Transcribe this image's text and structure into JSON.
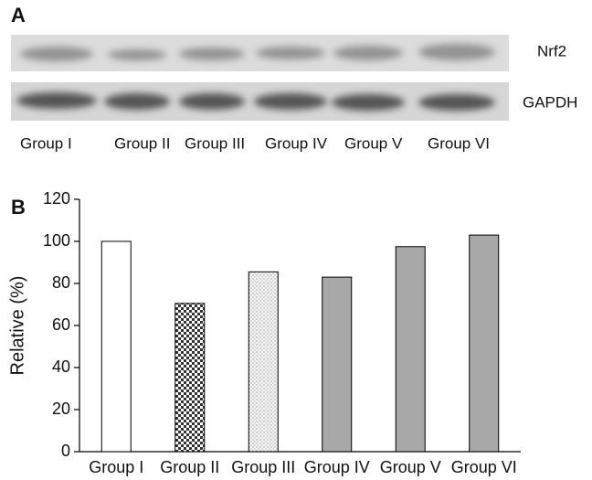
{
  "blot": {
    "panel_label": "A",
    "rows": [
      "Nrf2",
      "GAPDH"
    ],
    "lanes": [
      "Group I",
      "Group II",
      "Group III",
      "Group IV",
      "Group V",
      "Group VI"
    ]
  },
  "chart_data": {
    "type": "bar",
    "panel_label": "B",
    "y_label": "Relative (%)",
    "categories": [
      "Group I",
      "Group II",
      "Group III",
      "Group IV",
      "Group V",
      "Group VI"
    ],
    "values": [
      100,
      70.5,
      85.5,
      83,
      97.5,
      103
    ],
    "fills": [
      "#ffffff",
      "checker",
      "dots",
      "#a8a8a8",
      "#a8a8a8",
      "#a8a8a8"
    ],
    "ylim": [
      0,
      120
    ],
    "yticks": [
      0,
      20,
      40,
      60,
      80,
      100,
      120
    ]
  }
}
